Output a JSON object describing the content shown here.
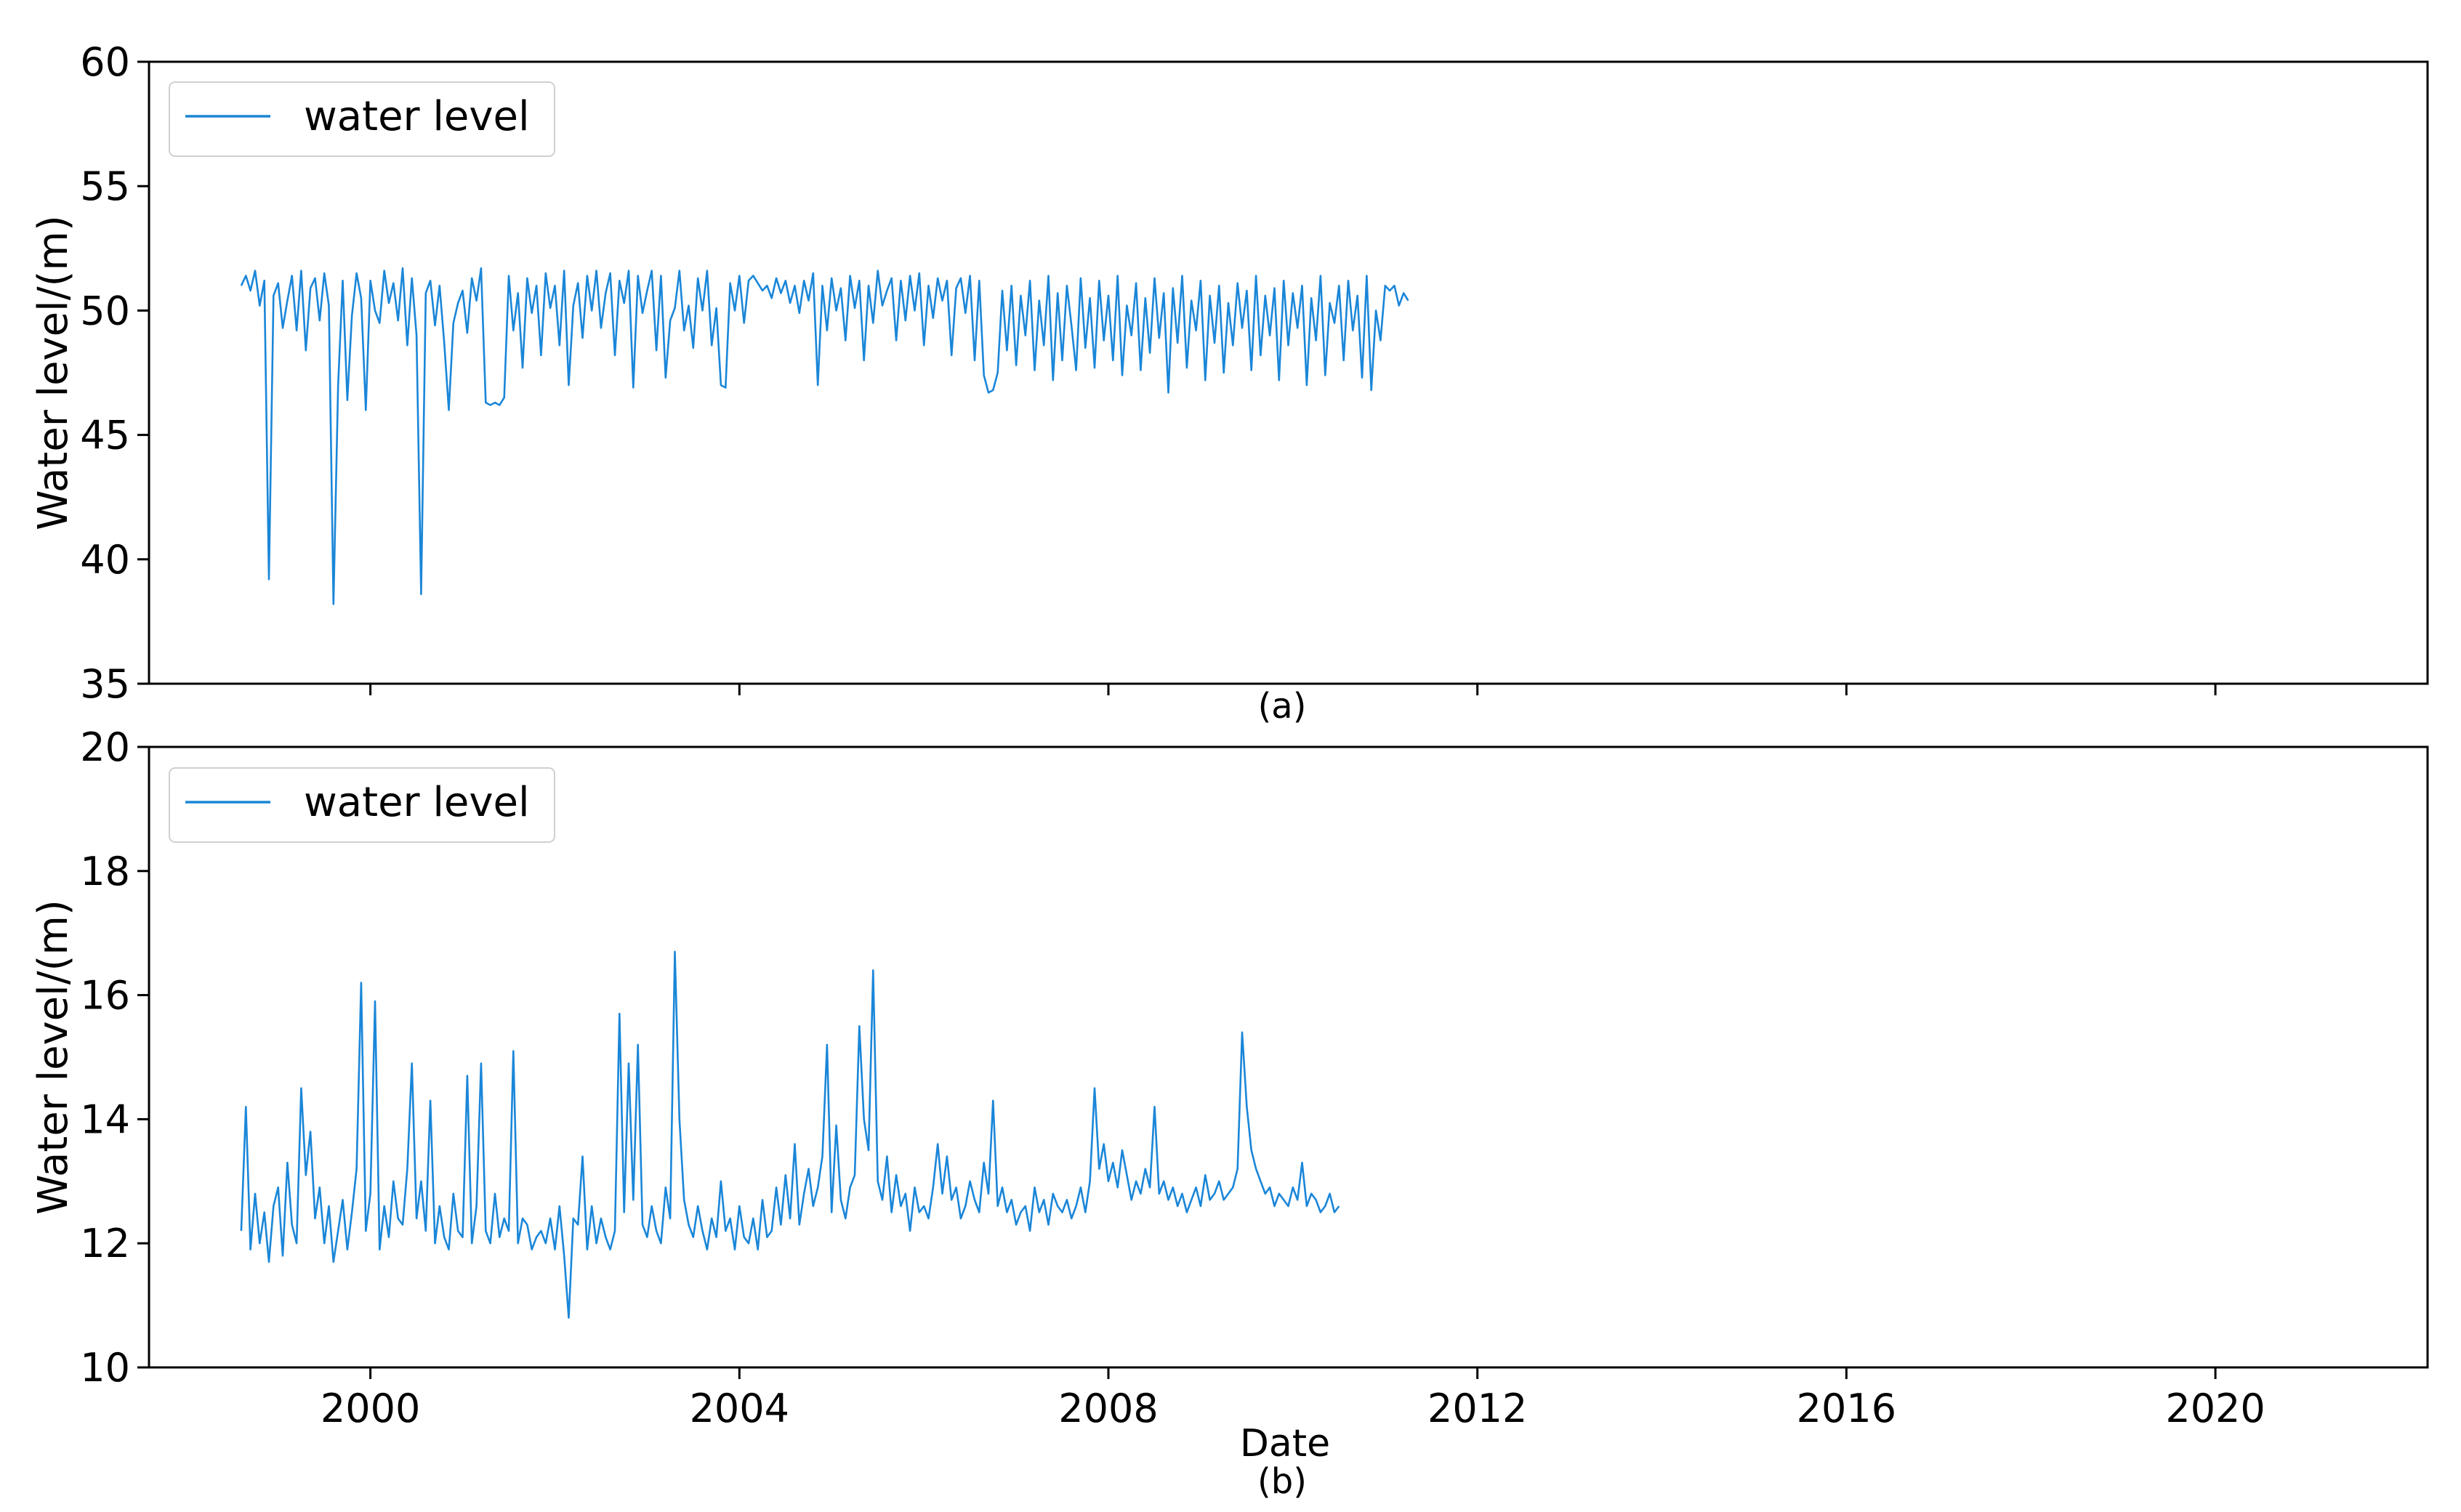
{
  "chart_data": [
    {
      "type": "line",
      "panel_label": "(a)",
      "title": "",
      "xlabel": "",
      "ylabel": "Water level/(m)",
      "xlim": [
        1997.6,
        2022.3
      ],
      "ylim": [
        35,
        60
      ],
      "x_ticks": [
        2000,
        2004,
        2008,
        2012,
        2016,
        2020
      ],
      "x_tick_labels": [
        "",
        "",
        "",
        "",
        "",
        ""
      ],
      "y_ticks": [
        35,
        40,
        45,
        50,
        55,
        60
      ],
      "y_tick_labels": [
        "35",
        "40",
        "45",
        "50",
        "55",
        "60"
      ],
      "legend": {
        "position": "top-left",
        "entries": [
          "water level"
        ]
      },
      "series": [
        {
          "name": "water level",
          "color": "#1a86d8",
          "start_year": 1998.6,
          "step_years": 0.05,
          "values": [
            51.0,
            51.4,
            50.8,
            51.6,
            50.2,
            51.2,
            39.2,
            50.6,
            51.1,
            49.3,
            50.4,
            51.4,
            49.2,
            51.6,
            48.4,
            50.9,
            51.3,
            49.6,
            51.5,
            50.2,
            38.2,
            47.0,
            51.2,
            46.4,
            49.8,
            51.5,
            50.5,
            46.0,
            51.2,
            50.0,
            49.5,
            51.6,
            50.3,
            51.1,
            49.6,
            51.7,
            48.6,
            51.3,
            49.0,
            38.6,
            50.7,
            51.2,
            49.4,
            51.0,
            48.7,
            46.0,
            49.5,
            50.3,
            50.8,
            49.1,
            51.3,
            50.4,
            51.7,
            46.3,
            46.2,
            46.3,
            46.2,
            46.5,
            51.4,
            49.2,
            50.7,
            47.7,
            51.3,
            49.9,
            51.0,
            48.2,
            51.5,
            50.1,
            51.0,
            48.6,
            51.6,
            47.0,
            50.2,
            51.1,
            48.9,
            51.4,
            50.0,
            51.6,
            49.3,
            50.7,
            51.5,
            48.2,
            51.2,
            50.3,
            51.6,
            46.9,
            51.4,
            49.9,
            50.8,
            51.6,
            48.4,
            51.4,
            47.3,
            49.6,
            50.1,
            51.6,
            49.2,
            50.2,
            48.5,
            51.3,
            50.0,
            51.6,
            48.6,
            50.1,
            47.0,
            46.9,
            51.1,
            50.0,
            51.4,
            49.5,
            51.2,
            51.4,
            51.1,
            50.8,
            51.0,
            50.5,
            51.3,
            50.7,
            51.2,
            50.3,
            51.0,
            49.9,
            51.2,
            50.4,
            51.5,
            47.0,
            51.0,
            49.2,
            51.3,
            50.0,
            50.9,
            48.8,
            51.4,
            50.1,
            51.2,
            48.0,
            51.0,
            49.5,
            51.6,
            50.2,
            50.8,
            51.3,
            48.8,
            51.2,
            49.6,
            51.4,
            50.0,
            51.5,
            48.6,
            51.0,
            49.7,
            51.3,
            50.4,
            51.2,
            48.2,
            50.9,
            51.3,
            49.9,
            51.4,
            48.0,
            51.2,
            47.4,
            46.7,
            46.8,
            47.5,
            50.8,
            48.4,
            51.0,
            47.8,
            50.6,
            49.0,
            51.2,
            47.6,
            50.4,
            48.6,
            51.4,
            47.2,
            50.7,
            48.0,
            51.0,
            49.4,
            47.6,
            51.3,
            48.5,
            50.5,
            47.7,
            51.2,
            48.8,
            50.6,
            48.0,
            51.4,
            47.4,
            50.2,
            49.0,
            51.1,
            47.6,
            50.5,
            48.3,
            51.3,
            48.9,
            50.7,
            46.7,
            50.9,
            48.7,
            51.4,
            47.7,
            50.4,
            49.2,
            51.2,
            47.2,
            50.6,
            48.7,
            51.0,
            47.5,
            50.3,
            48.6,
            51.1,
            49.3,
            50.8,
            47.6,
            51.4,
            48.2,
            50.6,
            49.0,
            50.9,
            47.2,
            51.2,
            48.6,
            50.7,
            49.3,
            51.0,
            47.0,
            50.5,
            48.8,
            51.4,
            47.4,
            50.3,
            49.5,
            51.0,
            48.0,
            51.2,
            49.2,
            50.6,
            47.3,
            51.4,
            46.8,
            50.0,
            48.8,
            51.0,
            50.8,
            51.0,
            50.2,
            50.7,
            50.4
          ]
        }
      ]
    },
    {
      "type": "line",
      "panel_label": "(b)",
      "title": "",
      "xlabel": "Date",
      "ylabel": "Water level/(m)",
      "xlim": [
        1997.6,
        2022.3
      ],
      "ylim": [
        10,
        20
      ],
      "x_ticks": [
        2000,
        2004,
        2008,
        2012,
        2016,
        2020
      ],
      "x_tick_labels": [
        "2000",
        "2004",
        "2008",
        "2012",
        "2016",
        "2020"
      ],
      "y_ticks": [
        10,
        12,
        14,
        16,
        18,
        20
      ],
      "y_tick_labels": [
        "10",
        "12",
        "14",
        "16",
        "18",
        "20"
      ],
      "legend": {
        "position": "top-left",
        "entries": [
          "water level"
        ]
      },
      "series": [
        {
          "name": "water level",
          "color": "#1a86d8",
          "start_year": 1998.6,
          "step_years": 0.05,
          "values": [
            12.2,
            14.2,
            11.9,
            12.8,
            12.0,
            12.5,
            11.7,
            12.6,
            12.9,
            11.8,
            13.3,
            12.3,
            12.0,
            14.5,
            13.1,
            13.8,
            12.4,
            12.9,
            12.0,
            12.6,
            11.7,
            12.2,
            12.7,
            11.9,
            12.5,
            13.2,
            16.2,
            12.2,
            12.8,
            15.9,
            11.9,
            12.6,
            12.1,
            13.0,
            12.4,
            12.3,
            13.2,
            14.9,
            12.4,
            13.0,
            12.2,
            14.3,
            12.0,
            12.6,
            12.1,
            11.9,
            12.8,
            12.2,
            12.1,
            14.7,
            12.0,
            12.6,
            14.9,
            12.2,
            12.0,
            12.8,
            12.1,
            12.4,
            12.2,
            15.1,
            12.0,
            12.4,
            12.3,
            11.9,
            12.1,
            12.2,
            12.0,
            12.4,
            11.9,
            12.6,
            11.8,
            10.8,
            12.4,
            12.3,
            13.4,
            11.9,
            12.6,
            12.0,
            12.4,
            12.1,
            11.9,
            12.2,
            15.7,
            12.5,
            14.9,
            12.7,
            15.2,
            12.3,
            12.1,
            12.6,
            12.2,
            12.0,
            12.9,
            12.4,
            16.7,
            14.0,
            12.7,
            12.3,
            12.1,
            12.6,
            12.2,
            11.9,
            12.4,
            12.1,
            13.0,
            12.2,
            12.4,
            11.9,
            12.6,
            12.1,
            12.0,
            12.4,
            11.9,
            12.7,
            12.1,
            12.2,
            12.9,
            12.3,
            13.1,
            12.4,
            13.6,
            12.3,
            12.8,
            13.2,
            12.6,
            12.9,
            13.4,
            15.2,
            12.5,
            13.9,
            12.7,
            12.4,
            12.9,
            13.1,
            15.5,
            14.0,
            13.5,
            16.4,
            13.0,
            12.7,
            13.4,
            12.5,
            13.1,
            12.6,
            12.8,
            12.2,
            12.9,
            12.5,
            12.6,
            12.4,
            12.9,
            13.6,
            12.8,
            13.4,
            12.7,
            12.9,
            12.4,
            12.6,
            13.0,
            12.7,
            12.5,
            13.3,
            12.8,
            14.3,
            12.6,
            12.9,
            12.5,
            12.7,
            12.3,
            12.5,
            12.6,
            12.2,
            12.9,
            12.5,
            12.7,
            12.3,
            12.8,
            12.6,
            12.5,
            12.7,
            12.4,
            12.6,
            12.9,
            12.5,
            13.0,
            14.5,
            13.2,
            13.6,
            13.0,
            13.3,
            12.9,
            13.5,
            13.1,
            12.7,
            13.0,
            12.8,
            13.2,
            12.9,
            14.2,
            12.8,
            13.0,
            12.7,
            12.9,
            12.6,
            12.8,
            12.5,
            12.7,
            12.9,
            12.6,
            13.1,
            12.7,
            12.8,
            13.0,
            12.7,
            12.8,
            12.9,
            13.2,
            15.4,
            14.2,
            13.5,
            13.2,
            13.0,
            12.8,
            12.9,
            12.6,
            12.8,
            12.7,
            12.6,
            12.9,
            12.7,
            13.3,
            12.6,
            12.8,
            12.7,
            12.5,
            12.6,
            12.8,
            12.5,
            12.6
          ]
        }
      ]
    }
  ]
}
